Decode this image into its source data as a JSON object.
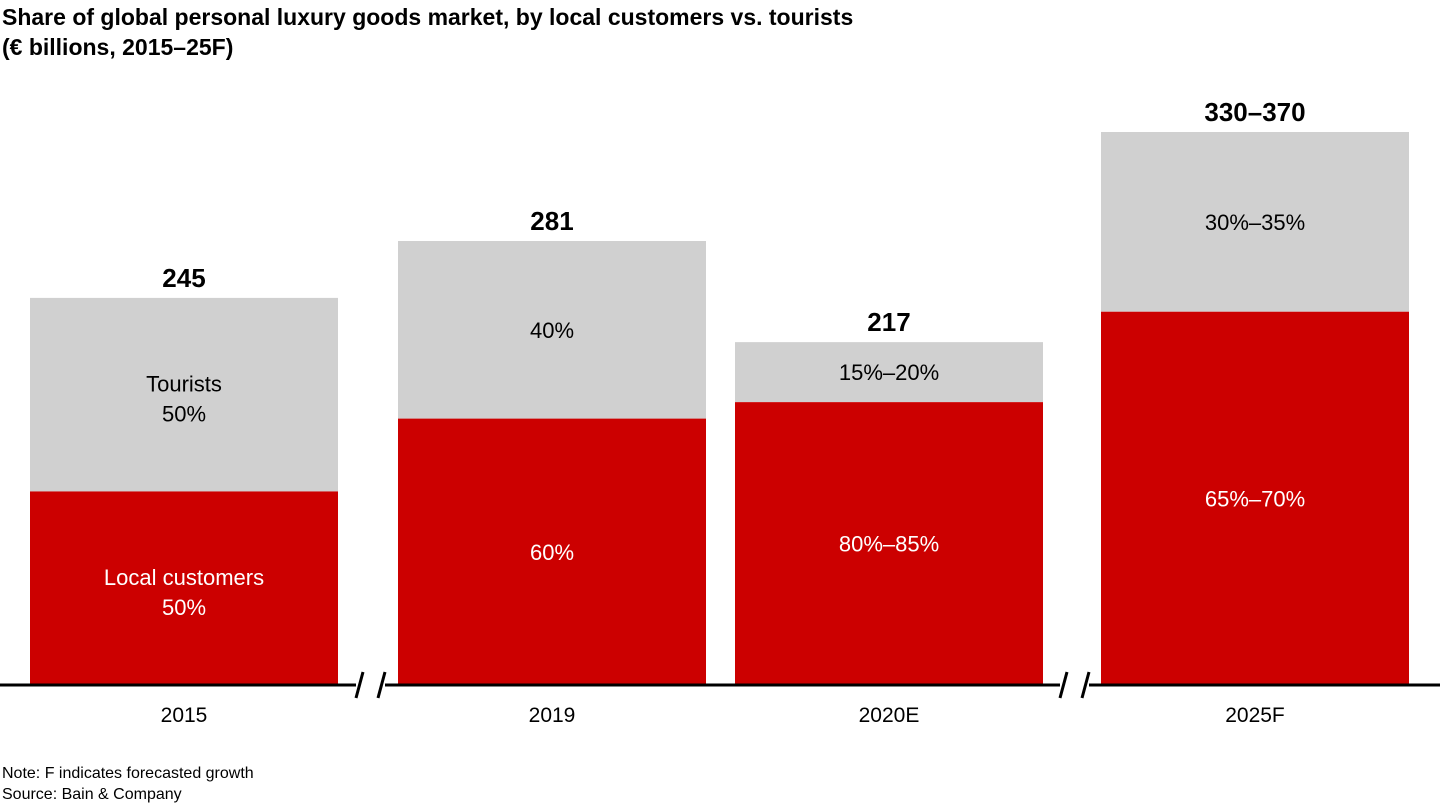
{
  "chart_data": {
    "type": "bar",
    "stacked": true,
    "title": "Share of global personal luxury goods market, by local customers vs. tourists",
    "subtitle": "(€ billions, 2015–25F)",
    "categories": [
      "2015",
      "2019",
      "2020E",
      "2025F"
    ],
    "totals": [
      245,
      281,
      217,
      350
    ],
    "total_labels": [
      "245",
      "281",
      "217",
      "330–370"
    ],
    "series": [
      {
        "name": "Local customers",
        "color": "#cc0000",
        "share": [
          0.5,
          0.6,
          0.825,
          0.675
        ],
        "labels": [
          "50%",
          "60%",
          "80%–85%",
          "65%–70%"
        ]
      },
      {
        "name": "Tourists",
        "color": "#d0d0d0",
        "share": [
          0.5,
          0.4,
          0.175,
          0.325
        ],
        "labels": [
          "50%",
          "40%",
          "15%–20%",
          "30%–35%"
        ]
      }
    ],
    "series_inline_labels": [
      "Local customers",
      "Tourists"
    ],
    "axis_breaks_after": [
      "2015",
      "2020E"
    ],
    "xlabel": "",
    "ylabel": "",
    "ylim": [
      0,
      370
    ],
    "grid": false,
    "legend": "none"
  },
  "notes": {
    "note": "Note: F indicates forecasted growth",
    "source": "Source: Bain & Company"
  }
}
